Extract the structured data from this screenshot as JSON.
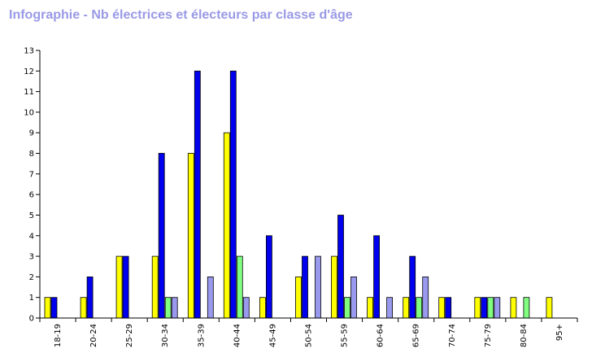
{
  "title": "Infographie - Nb électrices et électeurs par classe d'âge",
  "colors": {
    "title": "#9999e6",
    "series": [
      "#ffff00",
      "#0000ee",
      "#80ff80",
      "#9999ee"
    ]
  },
  "chart_data": {
    "type": "bar",
    "title": "Infographie - Nb électrices et électeurs par classe d'âge",
    "xlabel": "",
    "ylabel": "",
    "ylim": [
      0,
      13
    ],
    "yticks": [
      0,
      1,
      2,
      3,
      4,
      5,
      6,
      7,
      8,
      9,
      10,
      11,
      12,
      13
    ],
    "grid": false,
    "legend": "none",
    "categories": [
      "18-19",
      "20-24",
      "25-29",
      "30-34",
      "35-39",
      "40-44",
      "45-49",
      "50-54",
      "55-59",
      "60-64",
      "65-69",
      "70-74",
      "75-79",
      "80-84",
      "95+"
    ],
    "series": [
      {
        "color": "#ffff00",
        "values": [
          1,
          1,
          3,
          3,
          8,
          9,
          1,
          2,
          3,
          1,
          1,
          1,
          1,
          1,
          1
        ]
      },
      {
        "color": "#0000ee",
        "values": [
          1,
          2,
          3,
          8,
          12,
          12,
          4,
          3,
          5,
          4,
          3,
          1,
          1,
          0,
          0
        ]
      },
      {
        "color": "#80ff80",
        "values": [
          0,
          0,
          0,
          1,
          0,
          3,
          0,
          0,
          1,
          0,
          1,
          0,
          1,
          1,
          0
        ]
      },
      {
        "color": "#9999ee",
        "values": [
          0,
          0,
          0,
          1,
          2,
          1,
          0,
          3,
          2,
          1,
          2,
          0,
          1,
          0,
          0
        ]
      }
    ]
  }
}
